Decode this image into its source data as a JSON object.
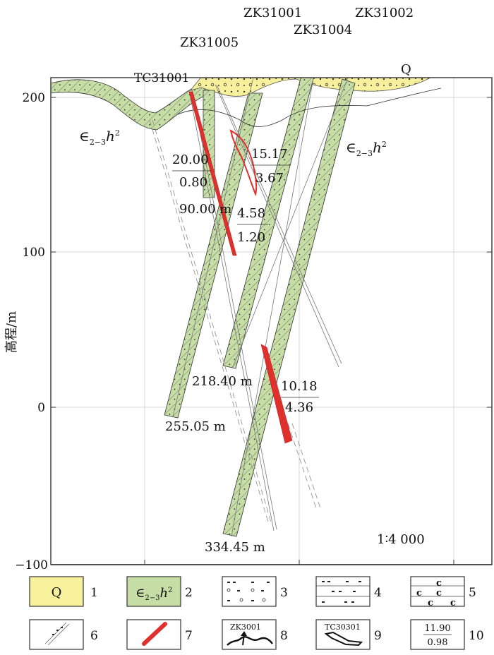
{
  "axis": {
    "y_label": "高程/m",
    "y_ticks": [
      "200",
      "100",
      "0",
      "−100"
    ],
    "y_range": [
      -100,
      230
    ]
  },
  "scale": "1∶4 000",
  "drillholes": {
    "zk31001": "ZK31001",
    "zk31002": "ZK31002",
    "zk31004": "ZK31004",
    "zk31005": "ZK31005",
    "tc31001": "TC31001"
  },
  "formation": {
    "symbol": "∈",
    "sub": "2−3",
    "h": "h",
    "sup": "2",
    "quaternary": "Q"
  },
  "depths": {
    "d1": "90.00 m",
    "d2": "218.40 m",
    "d3": "255.05 m",
    "d4": "334.45 m"
  },
  "ore_annotations": {
    "a1_top": "20.00",
    "a1_bottom": "0.80",
    "a2_top": "15.17",
    "a2_bottom": "3.67",
    "a3_top": "4.58",
    "a3_bottom": "1.20",
    "a4_top": "10.18",
    "a4_bottom": "4.36"
  },
  "legend": {
    "items": [
      {
        "num": "1",
        "text": "Q"
      },
      {
        "num": "2",
        "text": ""
      },
      {
        "num": "3",
        "text": ""
      },
      {
        "num": "4",
        "text": ""
      },
      {
        "num": "5",
        "text": "c"
      },
      {
        "num": "6",
        "text": ""
      },
      {
        "num": "7",
        "text": ""
      },
      {
        "num": "8",
        "text": "ZK3001"
      },
      {
        "num": "9",
        "text": "TC30301"
      },
      {
        "num": "10",
        "text": "11.90",
        "text2": "0.98"
      }
    ]
  },
  "colors": {
    "quaternary_fill": "#f7f09c",
    "formation_fill": "#c6dea6",
    "ore_fill": "#e0302e",
    "frame": "#333333",
    "grid": "#c8c8c8"
  }
}
